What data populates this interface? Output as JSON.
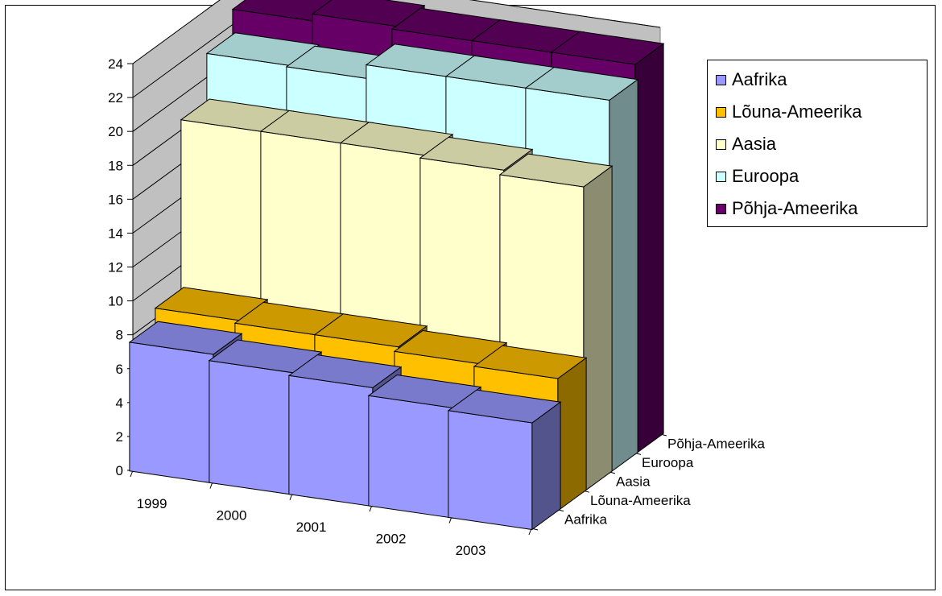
{
  "chart_data": {
    "type": "bar",
    "subtype": "3d-column",
    "title": "",
    "categories": [
      "1999",
      "2000",
      "2001",
      "2002",
      "2003"
    ],
    "depth_categories": [
      "Aafrika",
      "Lõuna-Ameerika",
      "Aasia",
      "Euroopa",
      "Põhja-Ameerika"
    ],
    "ylim": [
      0,
      24
    ],
    "yticks": [
      0,
      2,
      4,
      6,
      8,
      10,
      12,
      14,
      16,
      18,
      20,
      22,
      24
    ],
    "grid": true,
    "legend_position": "top-right",
    "series": [
      {
        "name": "Aafrika",
        "color": "#9999FF",
        "values": [
          7.6,
          7.2,
          7.0,
          6.5,
          6.3
        ]
      },
      {
        "name": "Lõuna-Ameerika",
        "color": "#FFC000",
        "values": [
          8.5,
          8.3,
          8.3,
          8.0,
          7.8
        ]
      },
      {
        "name": "Aasia",
        "color": "#FFFFCC",
        "values": [
          18.5,
          18.5,
          18.5,
          18.3,
          18.0
        ]
      },
      {
        "name": "Euroopa",
        "color": "#CCFFFF",
        "values": [
          21.3,
          21.2,
          22.0,
          22.0,
          22.0
        ]
      },
      {
        "name": "Põhja-Ameerika",
        "color": "#660066",
        "values": [
          22.8,
          23.2,
          23.0,
          23.0,
          23.0
        ]
      }
    ]
  }
}
